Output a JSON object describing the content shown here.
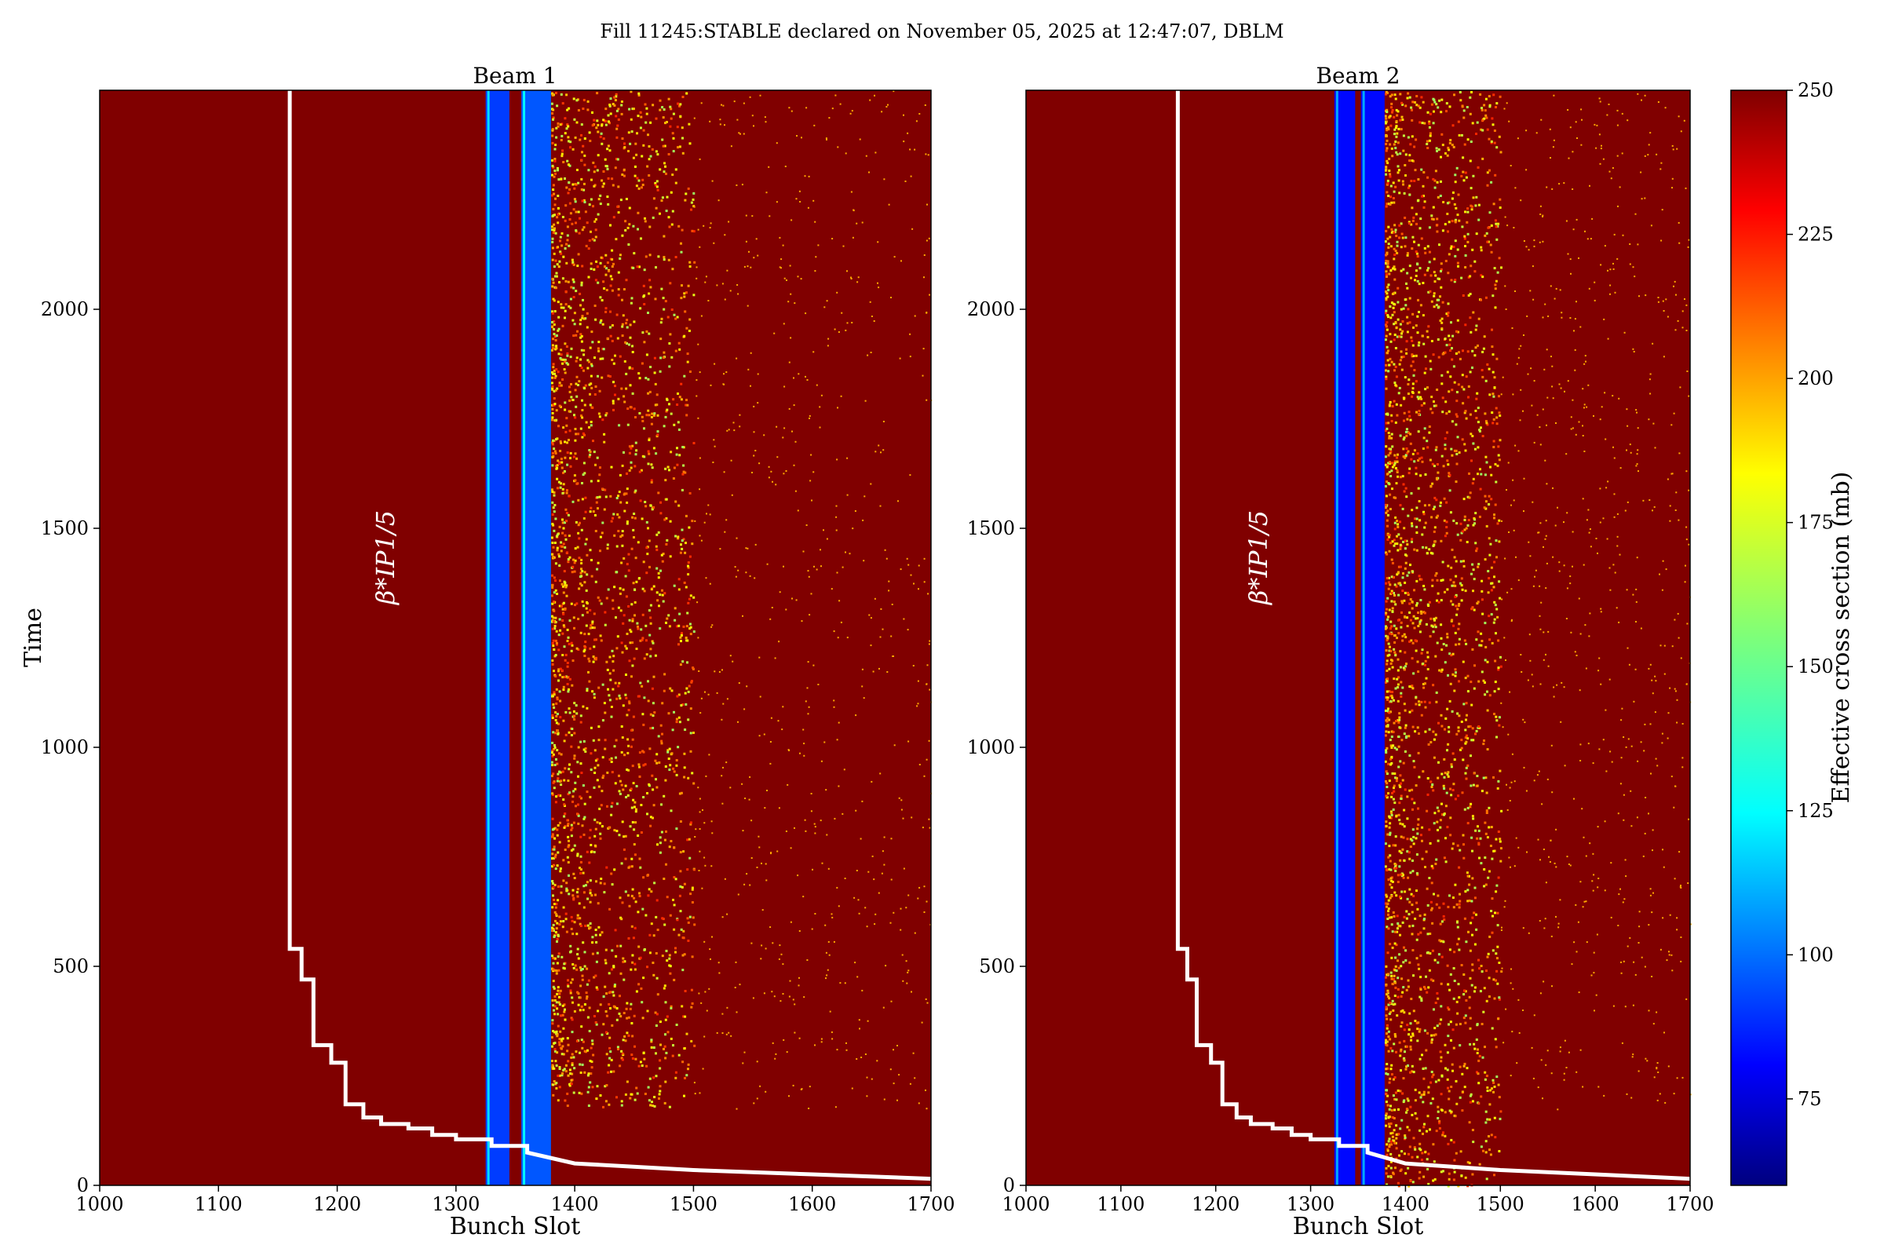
{
  "figure": {
    "suptitle": "Fill 11245:STABLE declared on November 05, 2025 at 12:47:07, DBLM"
  },
  "colors": {
    "background_heat": "#7f0000",
    "beta_line": "#ffffff"
  },
  "chart_data": [
    {
      "type": "heatmap",
      "title": "Beam 1",
      "xlabel": "Bunch Slot",
      "ylabel": "Time",
      "xlim": [
        1000,
        1700
      ],
      "ylim": [
        0,
        2500
      ],
      "xticks": [
        "1000",
        "1100",
        "1200",
        "1300",
        "1400",
        "1500",
        "1600",
        "1700"
      ],
      "yticks": [
        "0",
        "500",
        "1000",
        "1500",
        "2000"
      ],
      "annotation": "β*IP1/5",
      "low_loss_bands": [
        {
          "x_start": 1325,
          "x_end": 1345,
          "value": 95
        },
        {
          "x_start": 1355,
          "x_end": 1380,
          "value": 100
        }
      ],
      "noisy_region": {
        "x_start": 1380,
        "x_end": 1500,
        "y_start": 175,
        "y_end": 2500,
        "value": 200
      },
      "beta_line": {
        "x": [
          1160,
          1160,
          1170,
          1170,
          1180,
          1180,
          1195,
          1195,
          1207,
          1207,
          1222,
          1222,
          1237,
          1237,
          1260,
          1260,
          1280,
          1280,
          1300,
          1300,
          1330,
          1330,
          1360,
          1360,
          1400,
          1500,
          1600,
          1700
        ],
        "y": [
          2500,
          540,
          540,
          470,
          470,
          320,
          320,
          280,
          280,
          185,
          185,
          155,
          155,
          140,
          140,
          130,
          130,
          115,
          115,
          105,
          105,
          90,
          90,
          75,
          50,
          35,
          25,
          15
        ]
      }
    },
    {
      "type": "heatmap",
      "title": "Beam 2",
      "xlabel": "Bunch Slot",
      "ylabel": "",
      "xlim": [
        1000,
        1700
      ],
      "ylim": [
        0,
        2500
      ],
      "xticks": [
        "1000",
        "1100",
        "1200",
        "1300",
        "1400",
        "1500",
        "1600",
        "1700"
      ],
      "yticks": [
        "0",
        "500",
        "1000",
        "1500",
        "2000"
      ],
      "annotation": "β*IP1/5",
      "low_loss_bands": [
        {
          "x_start": 1325,
          "x_end": 1347,
          "value": 85
        },
        {
          "x_start": 1353,
          "x_end": 1378,
          "value": 85
        }
      ],
      "noisy_region": {
        "x_start": 1378,
        "x_end": 1500,
        "y_start": 0,
        "y_end": 2500,
        "value": 200
      },
      "beta_line": {
        "x": [
          1160,
          1160,
          1170,
          1170,
          1180,
          1180,
          1195,
          1195,
          1207,
          1207,
          1222,
          1222,
          1237,
          1237,
          1260,
          1260,
          1280,
          1280,
          1300,
          1300,
          1330,
          1330,
          1360,
          1360,
          1400,
          1500,
          1600,
          1700
        ],
        "y": [
          2500,
          540,
          540,
          470,
          470,
          320,
          320,
          280,
          280,
          185,
          185,
          155,
          155,
          140,
          140,
          130,
          130,
          115,
          115,
          105,
          105,
          90,
          90,
          75,
          50,
          35,
          25,
          15
        ]
      }
    }
  ],
  "colorbar": {
    "label": "Effective cross section (mb)",
    "range": [
      60,
      250
    ],
    "ticks": [
      "75",
      "100",
      "125",
      "150",
      "175",
      "200",
      "225",
      "250"
    ],
    "colormap": "jet"
  }
}
